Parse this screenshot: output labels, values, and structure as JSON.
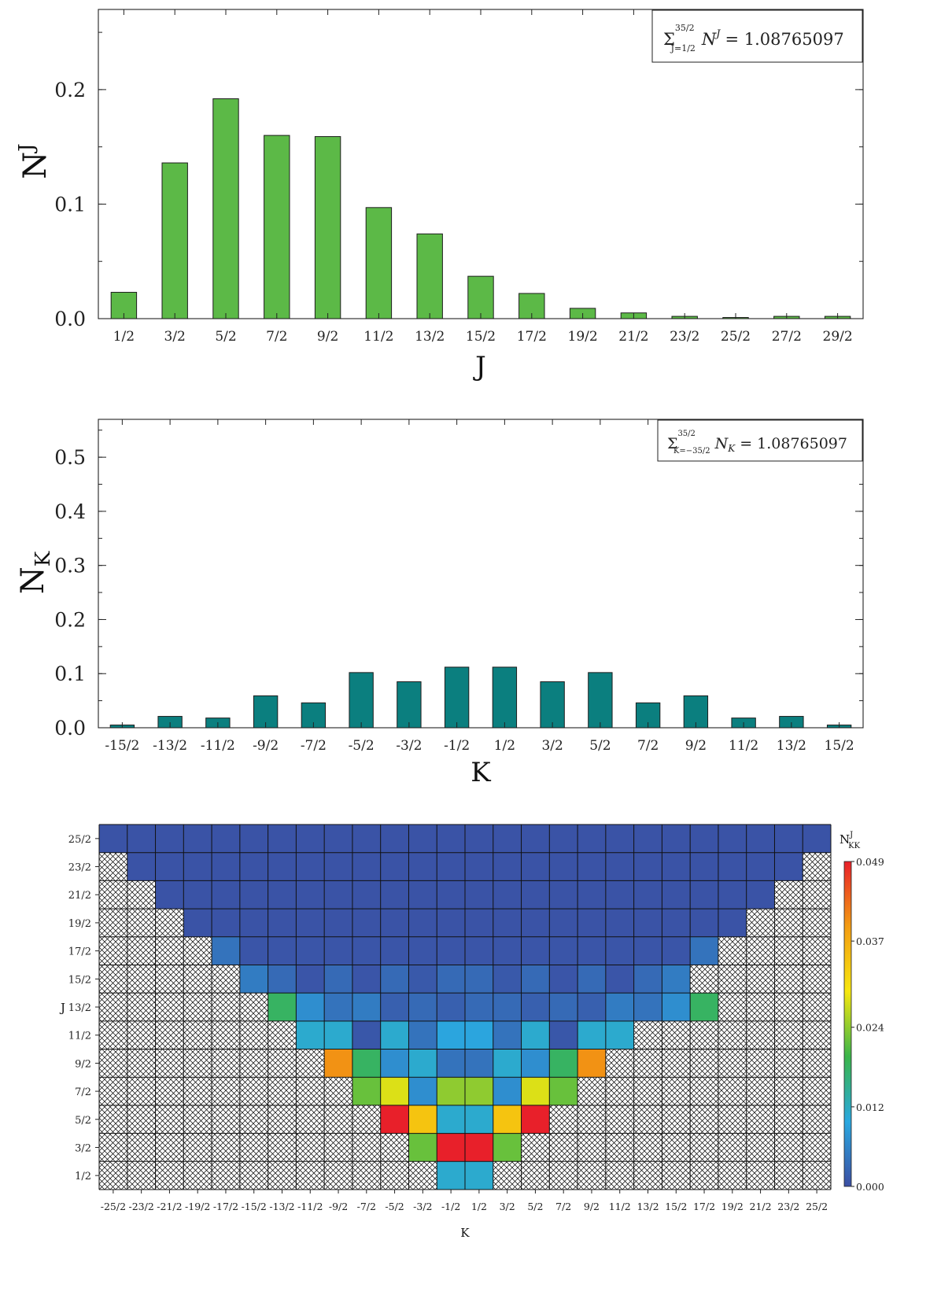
{
  "chart_data": [
    {
      "type": "bar",
      "ylabel": "N",
      "ylabel_sup": "J",
      "xlabel": "J",
      "legend": {
        "label": "Σ",
        "sup": "35/2",
        "sub": "J=1/2",
        "var": "N",
        "var_sup": "J",
        "value": "= 1.08765097",
        "position": "top-right"
      },
      "ylim": [
        0,
        0.27
      ],
      "yticks": [
        "0.0",
        "0.1",
        "0.2"
      ],
      "ytick_values": [
        0.0,
        0.1,
        0.2
      ],
      "categories": [
        "1/2",
        "3/2",
        "5/2",
        "7/2",
        "9/2",
        "11/2",
        "13/2",
        "15/2",
        "17/2",
        "19/2",
        "21/2",
        "23/2",
        "25/2",
        "27/2",
        "29/2"
      ],
      "values": [
        0.023,
        0.136,
        0.192,
        0.16,
        0.159,
        0.097,
        0.074,
        0.037,
        0.022,
        0.009,
        0.005,
        0.002,
        0.001,
        0.002,
        0.002
      ],
      "bar_color": "#5cb947"
    },
    {
      "type": "bar",
      "ylabel": "N",
      "ylabel_sub": "K",
      "xlabel": "K",
      "legend": {
        "label": "Σ",
        "sup": "35/2",
        "sub": "K=−35/2",
        "var": "N",
        "var_sub": "K",
        "value": "= 1.08765097",
        "position": "top-right"
      },
      "ylim": [
        0,
        0.57
      ],
      "yticks": [
        "0.0",
        "0.1",
        "0.2",
        "0.3",
        "0.4",
        "0.5"
      ],
      "ytick_values": [
        0.0,
        0.1,
        0.2,
        0.3,
        0.4,
        0.5
      ],
      "categories": [
        "-15/2",
        "-13/2",
        "-11/2",
        "-9/2",
        "-7/2",
        "-5/2",
        "-3/2",
        "-1/2",
        "1/2",
        "3/2",
        "5/2",
        "7/2",
        "9/2",
        "11/2",
        "13/2",
        "15/2"
      ],
      "values": [
        0.005,
        0.021,
        0.018,
        0.059,
        0.046,
        0.102,
        0.085,
        0.112,
        0.112,
        0.085,
        0.102,
        0.046,
        0.059,
        0.018,
        0.021,
        0.005
      ],
      "bar_color": "#0b7f7f"
    },
    {
      "type": "heatmap",
      "xlabel": "K",
      "ylabel": "J",
      "colorbar": {
        "title": "N",
        "title_sup": "J",
        "title_sub": "KK",
        "min": 0.0,
        "max": 0.049,
        "ticks": [
          "0.000",
          "0.012",
          "0.024",
          "0.037",
          "0.049"
        ],
        "tick_values": [
          0.0,
          0.012,
          0.024,
          0.037,
          0.049
        ],
        "stops": [
          "#3b4ea3",
          "#2aa8e0",
          "#3ab54a",
          "#f7e70f",
          "#f39c12",
          "#e8202a"
        ]
      },
      "x_categories": [
        "-25/2",
        "-23/2",
        "-21/2",
        "-19/2",
        "-17/2",
        "-15/2",
        "-13/2",
        "-11/2",
        "-9/2",
        "-7/2",
        "-5/2",
        "-3/2",
        "-1/2",
        "1/2",
        "3/2",
        "5/2",
        "7/2",
        "9/2",
        "11/2",
        "13/2",
        "15/2",
        "17/2",
        "19/2",
        "21/2",
        "23/2",
        "25/2"
      ],
      "y_categories": [
        "25/2",
        "23/2",
        "21/2",
        "19/2",
        "17/2",
        "15/2",
        "13/2",
        "11/2",
        "9/2",
        "7/2",
        "5/2",
        "3/2",
        "1/2"
      ],
      "rows": [
        {
          "j": "25/2",
          "start": 0,
          "values": [
            0.0005,
            0.0005,
            0.0005,
            0.0005,
            0.0005,
            0.0005,
            0.0005,
            0.0005,
            0.0005,
            0.0005,
            0.0005,
            0.0005,
            0.0005,
            0.0005,
            0.0005,
            0.0005,
            0.0005,
            0.0005,
            0.0005,
            0.0005,
            0.0005,
            0.0005,
            0.0005,
            0.0005,
            0.0005,
            0.0005
          ]
        },
        {
          "j": "23/2",
          "start": 1,
          "values": [
            0.0005,
            0.0005,
            0.0005,
            0.0005,
            0.0005,
            0.0005,
            0.0005,
            0.0005,
            0.0005,
            0.0005,
            0.0005,
            0.0005,
            0.0005,
            0.0005,
            0.0005,
            0.0005,
            0.0005,
            0.0005,
            0.0005,
            0.0005,
            0.0005,
            0.0005,
            0.0005,
            0.0005
          ]
        },
        {
          "j": "21/2",
          "start": 2,
          "values": [
            0.0005,
            0.0005,
            0.0005,
            0.0005,
            0.0005,
            0.0005,
            0.0005,
            0.0005,
            0.0005,
            0.0005,
            0.0005,
            0.0005,
            0.0005,
            0.0005,
            0.0005,
            0.0005,
            0.0005,
            0.0005,
            0.0005,
            0.0005,
            0.0005,
            0.0005
          ]
        },
        {
          "j": "19/2",
          "start": 3,
          "values": [
            0.0005,
            0.0005,
            0.0005,
            0.0005,
            0.0005,
            0.0005,
            0.0005,
            0.0005,
            0.0005,
            0.0005,
            0.0005,
            0.0005,
            0.0005,
            0.0005,
            0.0005,
            0.0005,
            0.0005,
            0.0005,
            0.0005,
            0.0005
          ]
        },
        {
          "j": "17/2",
          "start": 4,
          "values": [
            0.004,
            0.0008,
            0.0008,
            0.0008,
            0.0008,
            0.0008,
            0.0008,
            0.0008,
            0.0008,
            0.0008,
            0.0008,
            0.0008,
            0.0008,
            0.0008,
            0.0008,
            0.0008,
            0.0008,
            0.004
          ]
        },
        {
          "j": "15/2",
          "start": 5,
          "values": [
            0.005,
            0.003,
            0.0008,
            0.003,
            0.0008,
            0.003,
            0.0012,
            0.003,
            0.003,
            0.0012,
            0.003,
            0.0008,
            0.003,
            0.0008,
            0.003,
            0.005
          ]
        },
        {
          "j": "13/2",
          "start": 6,
          "values": [
            0.018,
            0.007,
            0.004,
            0.005,
            0.002,
            0.003,
            0.002,
            0.003,
            0.003,
            0.002,
            0.003,
            0.002,
            0.005,
            0.004,
            0.007,
            0.018
          ]
        },
        {
          "j": "11/2",
          "start": 7,
          "values": [
            0.011,
            0.011,
            0.001,
            0.011,
            0.004,
            0.0095,
            0.0095,
            0.004,
            0.011,
            0.001,
            0.011,
            0.011
          ]
        },
        {
          "j": "9/2",
          "start": 8,
          "values": [
            0.04,
            0.018,
            0.007,
            0.011,
            0.004,
            0.004,
            0.011,
            0.007,
            0.018,
            0.04
          ]
        },
        {
          "j": "7/2",
          "start": 9,
          "values": [
            0.022,
            0.028,
            0.007,
            0.024,
            0.024,
            0.007,
            0.028,
            0.022
          ]
        },
        {
          "j": "5/2",
          "start": 10,
          "values": [
            0.049,
            0.034,
            0.011,
            0.011,
            0.034,
            0.049
          ]
        },
        {
          "j": "3/2",
          "start": 11,
          "values": [
            0.022,
            0.049,
            0.049,
            0.022
          ]
        },
        {
          "j": "1/2",
          "start": 12,
          "values": [
            0.011,
            0.011
          ]
        }
      ]
    }
  ]
}
